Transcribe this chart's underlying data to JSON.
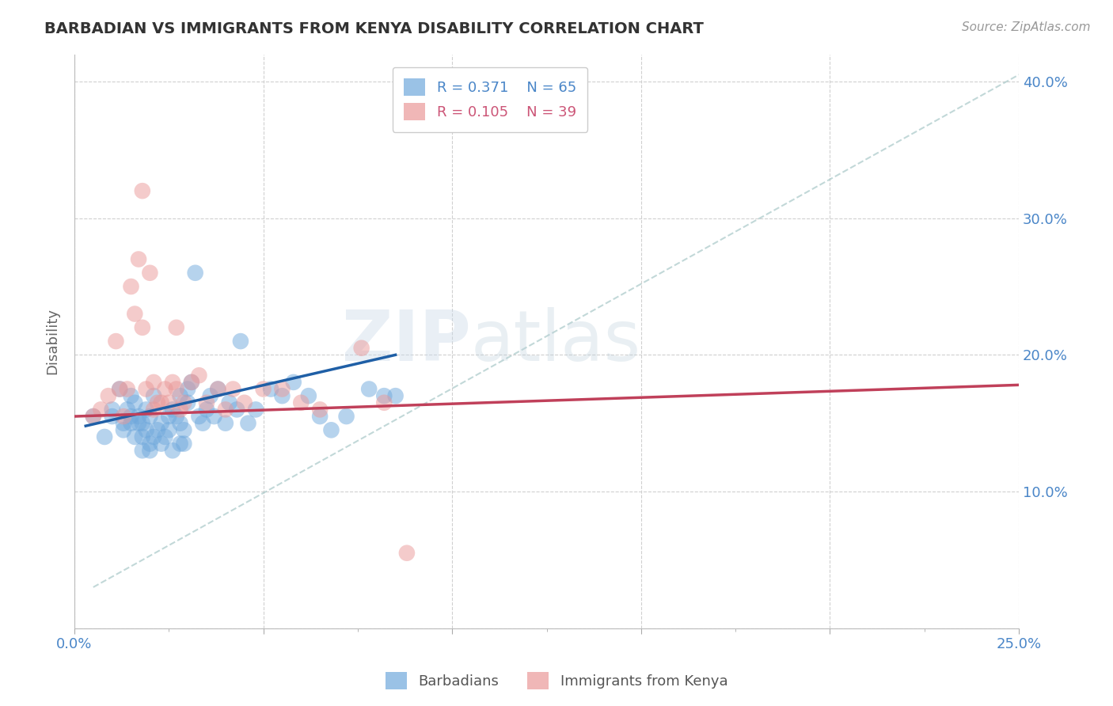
{
  "title": "BARBADIAN VS IMMIGRANTS FROM KENYA DISABILITY CORRELATION CHART",
  "source": "Source: ZipAtlas.com",
  "ylabel": "Disability",
  "xlim": [
    0.0,
    0.25
  ],
  "ylim": [
    0.0,
    0.42
  ],
  "xticks": [
    0.0,
    0.05,
    0.1,
    0.15,
    0.2,
    0.25
  ],
  "yticks": [
    0.0,
    0.1,
    0.2,
    0.3,
    0.4
  ],
  "xticklabels": [
    "0.0%",
    "",
    "",
    "",
    "",
    "25.0%"
  ],
  "yticklabels": [
    "",
    "10.0%",
    "20.0%",
    "30.0%",
    "40.0%"
  ],
  "barbadian_color": "#6fa8dc",
  "kenya_color": "#ea9999",
  "barbadian_R": 0.371,
  "barbadian_N": 65,
  "kenya_R": 0.105,
  "kenya_N": 39,
  "background_color": "#ffffff",
  "grid_color": "#d0d0d0",
  "watermark_zip": "ZIP",
  "watermark_atlas": "atlas",
  "blue_scatter_x": [
    0.005,
    0.008,
    0.01,
    0.01,
    0.012,
    0.013,
    0.013,
    0.014,
    0.015,
    0.015,
    0.015,
    0.016,
    0.016,
    0.017,
    0.017,
    0.018,
    0.018,
    0.018,
    0.019,
    0.019,
    0.02,
    0.02,
    0.02,
    0.021,
    0.021,
    0.022,
    0.023,
    0.023,
    0.024,
    0.025,
    0.025,
    0.026,
    0.026,
    0.027,
    0.028,
    0.028,
    0.028,
    0.029,
    0.029,
    0.03,
    0.03,
    0.031,
    0.032,
    0.033,
    0.034,
    0.035,
    0.036,
    0.037,
    0.038,
    0.04,
    0.041,
    0.043,
    0.044,
    0.046,
    0.048,
    0.052,
    0.055,
    0.058,
    0.062,
    0.065,
    0.068,
    0.072,
    0.078,
    0.082,
    0.085
  ],
  "blue_scatter_y": [
    0.155,
    0.14,
    0.16,
    0.155,
    0.175,
    0.145,
    0.15,
    0.16,
    0.15,
    0.155,
    0.17,
    0.14,
    0.165,
    0.15,
    0.155,
    0.13,
    0.14,
    0.15,
    0.145,
    0.16,
    0.13,
    0.135,
    0.155,
    0.14,
    0.17,
    0.145,
    0.135,
    0.15,
    0.14,
    0.145,
    0.155,
    0.13,
    0.16,
    0.155,
    0.15,
    0.135,
    0.17,
    0.135,
    0.145,
    0.175,
    0.165,
    0.18,
    0.26,
    0.155,
    0.15,
    0.16,
    0.17,
    0.155,
    0.175,
    0.15,
    0.165,
    0.16,
    0.21,
    0.15,
    0.16,
    0.175,
    0.17,
    0.18,
    0.17,
    0.155,
    0.145,
    0.155,
    0.175,
    0.17,
    0.17
  ],
  "pink_scatter_x": [
    0.005,
    0.007,
    0.009,
    0.011,
    0.012,
    0.013,
    0.014,
    0.015,
    0.016,
    0.017,
    0.018,
    0.018,
    0.019,
    0.02,
    0.021,
    0.021,
    0.022,
    0.023,
    0.024,
    0.025,
    0.026,
    0.027,
    0.027,
    0.028,
    0.029,
    0.031,
    0.033,
    0.035,
    0.038,
    0.04,
    0.042,
    0.045,
    0.05,
    0.055,
    0.06,
    0.065,
    0.076,
    0.082,
    0.088
  ],
  "pink_scatter_y": [
    0.155,
    0.16,
    0.17,
    0.21,
    0.175,
    0.155,
    0.175,
    0.25,
    0.23,
    0.27,
    0.22,
    0.32,
    0.175,
    0.26,
    0.18,
    0.16,
    0.165,
    0.165,
    0.175,
    0.165,
    0.18,
    0.175,
    0.22,
    0.16,
    0.165,
    0.18,
    0.185,
    0.165,
    0.175,
    0.16,
    0.175,
    0.165,
    0.175,
    0.175,
    0.165,
    0.16,
    0.205,
    0.165,
    0.055
  ],
  "blue_line_x": [
    0.003,
    0.085
  ],
  "blue_line_y": [
    0.148,
    0.2
  ],
  "pink_line_x": [
    0.0,
    0.25
  ],
  "pink_line_y": [
    0.155,
    0.178
  ],
  "dash_line_x": [
    0.005,
    0.25
  ],
  "dash_line_y": [
    0.03,
    0.405
  ]
}
